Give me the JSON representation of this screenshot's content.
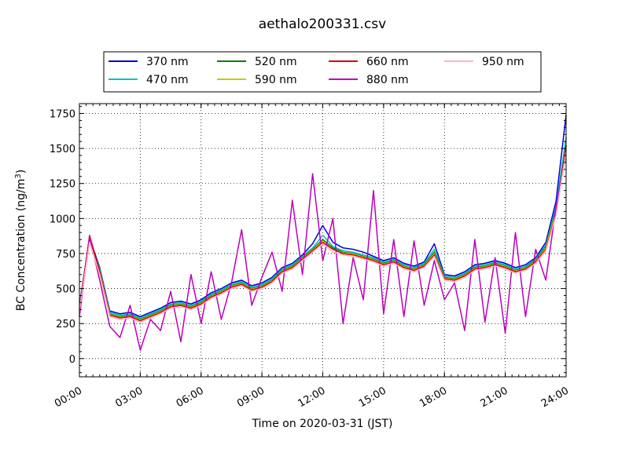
{
  "chart_data": {
    "type": "line",
    "title": "aethalo200331.csv",
    "xlabel": "Time on 2020-03-31 (JST)",
    "ylabel": "BC Concentration (ng/m",
    "ylabel_sup": "3",
    "ylabel_end": ")",
    "xlim": [
      0,
      24
    ],
    "ylim": [
      -130,
      1820
    ],
    "xticks": [
      0,
      3,
      6,
      9,
      12,
      15,
      18,
      21,
      24
    ],
    "xtick_labels": [
      "00:00",
      "03:00",
      "06:00",
      "09:00",
      "12:00",
      "15:00",
      "18:00",
      "21:00",
      "24:00"
    ],
    "yticks": [
      0,
      250,
      500,
      750,
      1000,
      1250,
      1500,
      1750
    ],
    "ytick_labels": [
      "0",
      "250",
      "500",
      "750",
      "1000",
      "1250",
      "1500",
      "1750"
    ],
    "grid": true,
    "legend_position": "above plot, 4 columns",
    "x": [
      0.0,
      0.5,
      1.0,
      1.5,
      2.0,
      2.5,
      3.0,
      3.5,
      4.0,
      4.5,
      5.0,
      5.5,
      6.0,
      6.5,
      7.0,
      7.5,
      8.0,
      8.5,
      9.0,
      9.5,
      10.0,
      10.5,
      11.0,
      11.5,
      12.0,
      12.5,
      13.0,
      13.5,
      14.0,
      14.5,
      15.0,
      15.5,
      16.0,
      16.5,
      17.0,
      17.5,
      18.0,
      18.5,
      19.0,
      19.5,
      20.0,
      20.5,
      21.0,
      21.5,
      22.0,
      22.5,
      23.0,
      23.5,
      24.0
    ],
    "series": [
      {
        "name": "370 nm",
        "color": "#0000dd",
        "values": [
          380,
          860,
          650,
          340,
          320,
          330,
          300,
          330,
          360,
          400,
          410,
          390,
          420,
          470,
          500,
          540,
          560,
          520,
          540,
          580,
          650,
          680,
          740,
          820,
          950,
          830,
          790,
          780,
          760,
          730,
          700,
          720,
          680,
          660,
          690,
          820,
          600,
          590,
          620,
          670,
          680,
          700,
          680,
          650,
          670,
          720,
          830,
          1120,
          1740
        ]
      },
      {
        "name": "470 nm",
        "color": "#00bfc4",
        "values": [
          370,
          850,
          640,
          330,
          310,
          320,
          290,
          320,
          350,
          390,
          400,
          380,
          410,
          460,
          490,
          530,
          550,
          510,
          530,
          570,
          640,
          670,
          730,
          790,
          880,
          800,
          770,
          760,
          740,
          720,
          690,
          710,
          670,
          650,
          680,
          780,
          590,
          580,
          610,
          660,
          670,
          690,
          670,
          640,
          660,
          710,
          810,
          1080,
          1580
        ]
      },
      {
        "name": "520 nm",
        "color": "#008000",
        "values": [
          360,
          840,
          630,
          320,
          300,
          310,
          280,
          310,
          340,
          380,
          390,
          370,
          400,
          450,
          480,
          520,
          540,
          500,
          520,
          560,
          630,
          660,
          720,
          780,
          850,
          790,
          760,
          750,
          730,
          710,
          680,
          700,
          660,
          640,
          670,
          760,
          580,
          570,
          600,
          650,
          660,
          680,
          660,
          630,
          650,
          700,
          800,
          1060,
          1520
        ]
      },
      {
        "name": "590 nm",
        "color": "#c8c800",
        "values": [
          355,
          835,
          625,
          315,
          295,
          305,
          275,
          305,
          335,
          375,
          385,
          365,
          395,
          445,
          475,
          515,
          535,
          495,
          515,
          555,
          625,
          655,
          715,
          775,
          840,
          780,
          755,
          745,
          725,
          705,
          675,
          695,
          655,
          635,
          665,
          750,
          575,
          565,
          595,
          645,
          655,
          675,
          655,
          625,
          645,
          695,
          790,
          1050,
          1500
        ]
      },
      {
        "name": "660 nm",
        "color": "#dd0000",
        "values": [
          350,
          880,
          620,
          310,
          290,
          300,
          270,
          300,
          330,
          370,
          380,
          360,
          390,
          440,
          470,
          510,
          530,
          490,
          510,
          550,
          620,
          650,
          710,
          770,
          830,
          780,
          750,
          740,
          720,
          700,
          670,
          690,
          650,
          630,
          660,
          740,
          570,
          560,
          590,
          640,
          650,
          670,
          650,
          620,
          640,
          690,
          780,
          1030,
          1520
        ]
      },
      {
        "name": "880 nm",
        "color": "#bb00bb",
        "values": [
          300,
          870,
          560,
          230,
          150,
          380,
          60,
          280,
          200,
          480,
          120,
          600,
          250,
          620,
          280,
          540,
          920,
          380,
          580,
          760,
          480,
          1130,
          600,
          1320,
          700,
          1000,
          250,
          720,
          420,
          1200,
          320,
          850,
          300,
          840,
          380,
          700,
          420,
          540,
          200,
          850,
          260,
          720,
          180,
          900,
          300,
          780,
          560,
          1080,
          1460
        ]
      },
      {
        "name": "950 nm",
        "color": "#ffb6c1",
        "values": [
          340,
          830,
          600,
          300,
          280,
          290,
          260,
          290,
          320,
          360,
          370,
          350,
          380,
          430,
          460,
          500,
          520,
          480,
          500,
          540,
          610,
          640,
          700,
          760,
          820,
          760,
          740,
          730,
          710,
          690,
          660,
          680,
          640,
          620,
          650,
          730,
          560,
          550,
          580,
          630,
          640,
          660,
          640,
          610,
          630,
          680,
          770,
          1020,
          1480
        ]
      }
    ]
  }
}
